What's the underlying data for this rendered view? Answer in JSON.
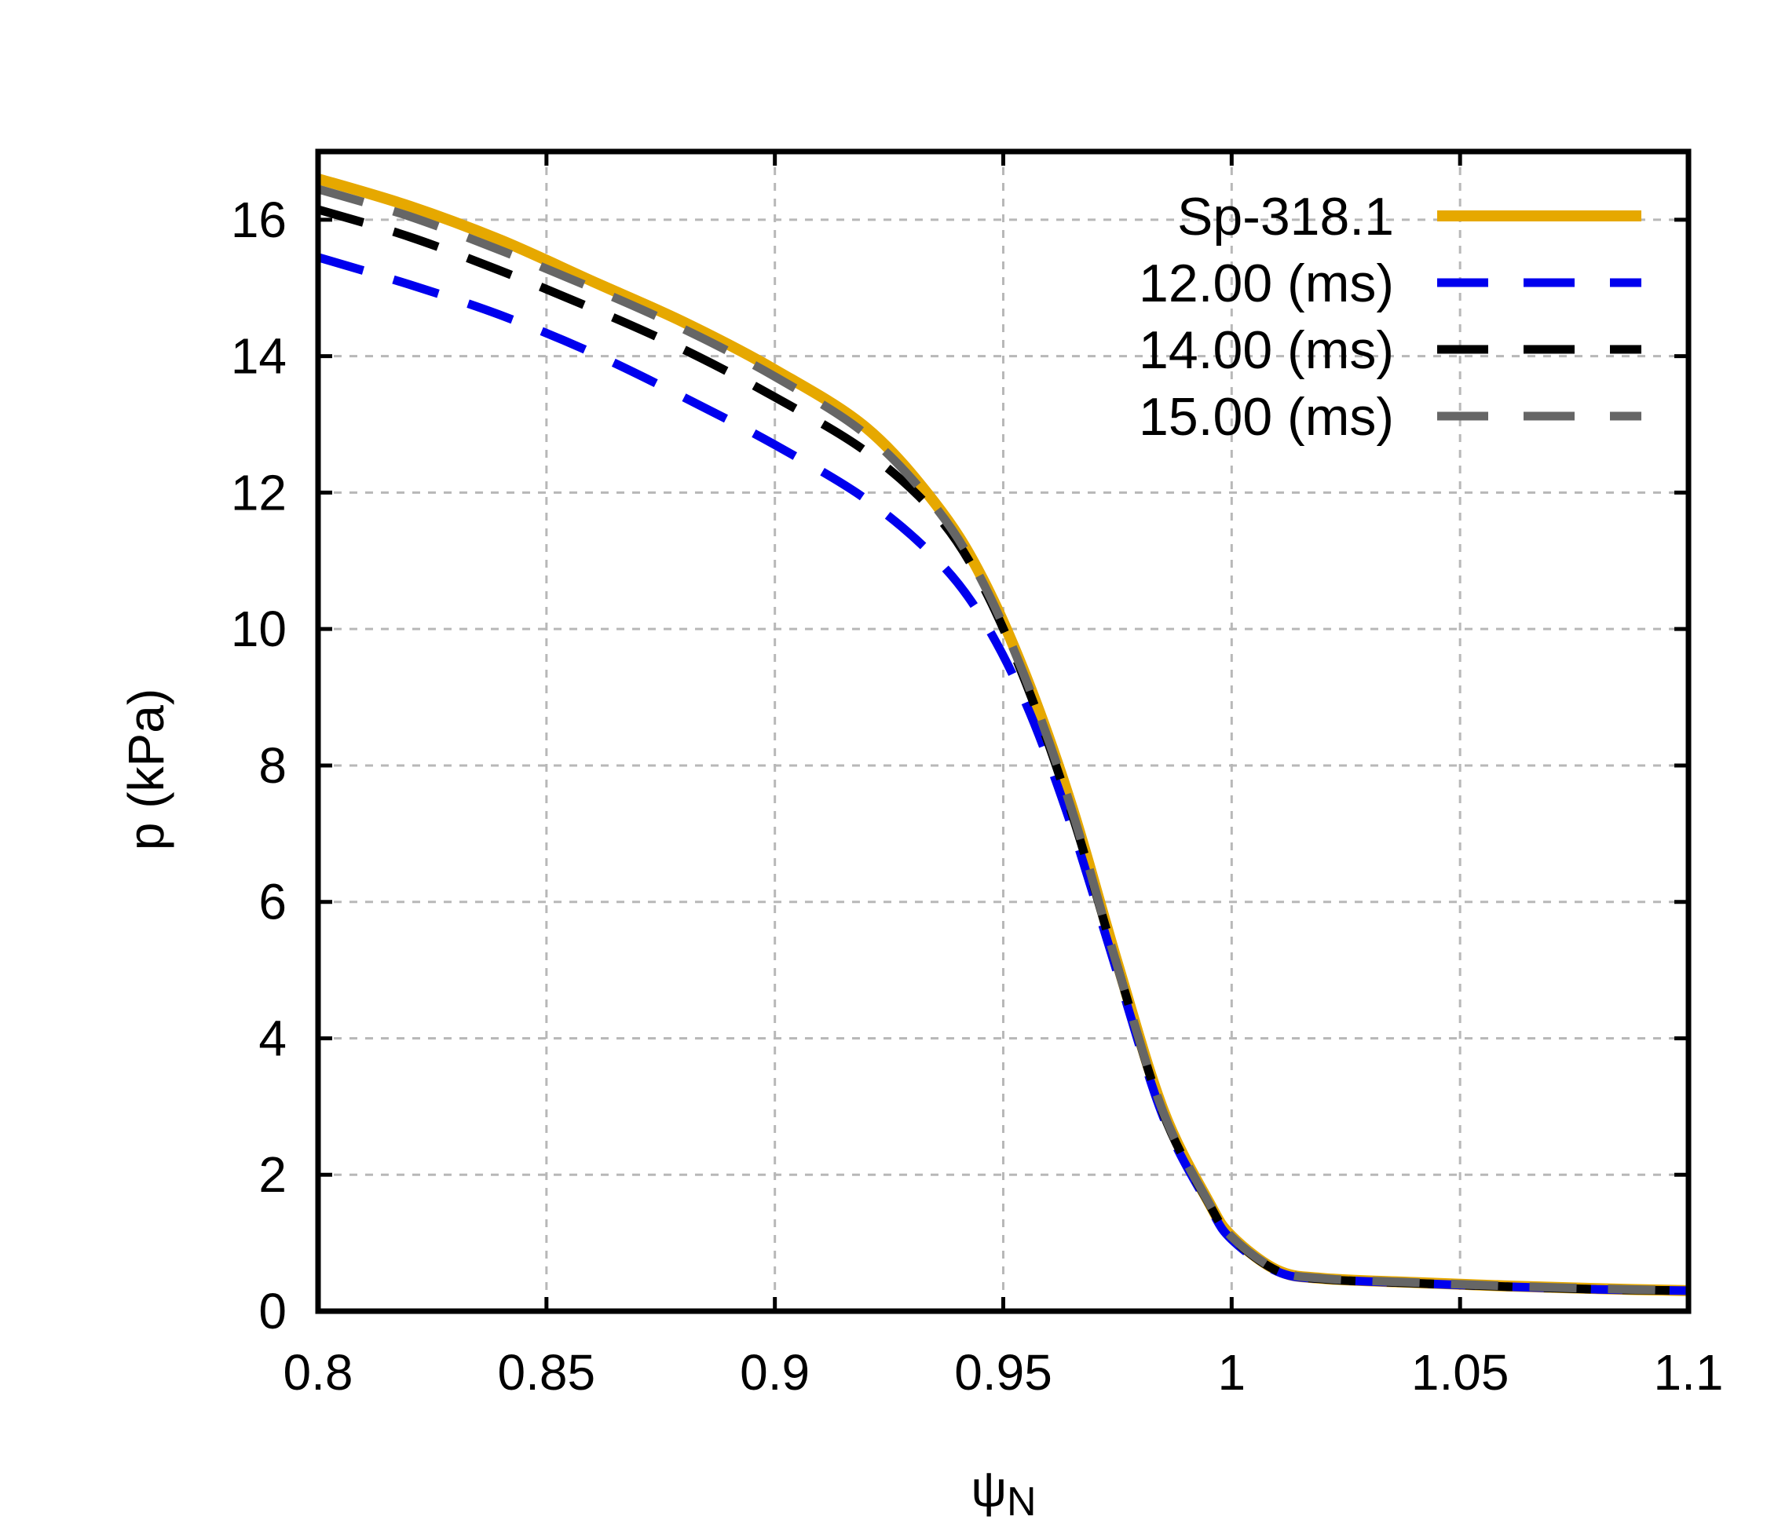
{
  "chart_data": {
    "type": "line",
    "title": "",
    "xlabel": "ψ",
    "xlabel_subscript": "N",
    "ylabel": "p (kPa)",
    "xlim": [
      0.8,
      1.1
    ],
    "ylim": [
      0,
      17
    ],
    "grid": true,
    "legend_position": "top-right",
    "x_ticks": [
      {
        "value": 0.8,
        "label": "0.8"
      },
      {
        "value": 0.85,
        "label": "0.85"
      },
      {
        "value": 0.9,
        "label": "0.9"
      },
      {
        "value": 0.95,
        "label": "0.95"
      },
      {
        "value": 1.0,
        "label": "1"
      },
      {
        "value": 1.05,
        "label": "1.05"
      },
      {
        "value": 1.1,
        "label": "1.1"
      }
    ],
    "y_ticks": [
      {
        "value": 0,
        "label": "0"
      },
      {
        "value": 2,
        "label": "2"
      },
      {
        "value": 4,
        "label": "4"
      },
      {
        "value": 6,
        "label": "6"
      },
      {
        "value": 8,
        "label": "8"
      },
      {
        "value": 10,
        "label": "10"
      },
      {
        "value": 12,
        "label": "12"
      },
      {
        "value": 14,
        "label": "14"
      },
      {
        "value": 16,
        "label": "16"
      }
    ],
    "series": [
      {
        "name": "Sp-318.1",
        "color": "#e6a800",
        "style": "solid",
        "x": [
          0.8,
          0.82,
          0.84,
          0.86,
          0.88,
          0.9,
          0.92,
          0.935,
          0.945,
          0.955,
          0.965,
          0.975,
          0.985,
          0.995,
          1.0,
          1.01,
          1.02,
          1.04,
          1.06,
          1.08,
          1.1
        ],
        "y": [
          16.6,
          16.2,
          15.7,
          15.1,
          14.5,
          13.8,
          12.95,
          11.85,
          10.8,
          9.3,
          7.4,
          5.1,
          2.95,
          1.6,
          1.1,
          0.6,
          0.48,
          0.42,
          0.37,
          0.33,
          0.3
        ]
      },
      {
        "name": "12.00 (ms)",
        "color": "#0000ee",
        "style": "dashed",
        "x": [
          0.8,
          0.82,
          0.84,
          0.86,
          0.88,
          0.9,
          0.92,
          0.935,
          0.945,
          0.955,
          0.965,
          0.975,
          0.985,
          0.995,
          1.0,
          1.01,
          1.02,
          1.04,
          1.06,
          1.08,
          1.1
        ],
        "y": [
          15.45,
          15.05,
          14.6,
          14.05,
          13.4,
          12.7,
          11.9,
          11.05,
          10.2,
          8.9,
          7.1,
          4.95,
          2.85,
          1.55,
          1.05,
          0.58,
          0.47,
          0.41,
          0.36,
          0.32,
          0.3
        ]
      },
      {
        "name": "14.00 (ms)",
        "color": "#000000",
        "style": "dashed",
        "x": [
          0.8,
          0.82,
          0.84,
          0.86,
          0.88,
          0.9,
          0.92,
          0.935,
          0.945,
          0.955,
          0.965,
          0.975,
          0.985,
          0.995,
          1.0,
          1.01,
          1.02,
          1.04,
          1.06,
          1.08,
          1.1
        ],
        "y": [
          16.15,
          15.75,
          15.25,
          14.7,
          14.1,
          13.4,
          12.6,
          11.7,
          10.7,
          9.2,
          7.3,
          5.05,
          2.9,
          1.58,
          1.08,
          0.59,
          0.47,
          0.41,
          0.36,
          0.32,
          0.3
        ]
      },
      {
        "name": "15.00 (ms)",
        "color": "#666666",
        "style": "dashed",
        "x": [
          0.8,
          0.82,
          0.84,
          0.86,
          0.88,
          0.9,
          0.92,
          0.935,
          0.945,
          0.955,
          0.965,
          0.975,
          0.985,
          0.995,
          1.0,
          1.01,
          1.02,
          1.04,
          1.06,
          1.08,
          1.1
        ],
        "y": [
          16.45,
          16.05,
          15.55,
          15.0,
          14.4,
          13.7,
          12.85,
          11.8,
          10.75,
          9.25,
          7.35,
          5.05,
          2.92,
          1.59,
          1.09,
          0.6,
          0.48,
          0.42,
          0.37,
          0.33,
          0.3
        ]
      }
    ]
  }
}
